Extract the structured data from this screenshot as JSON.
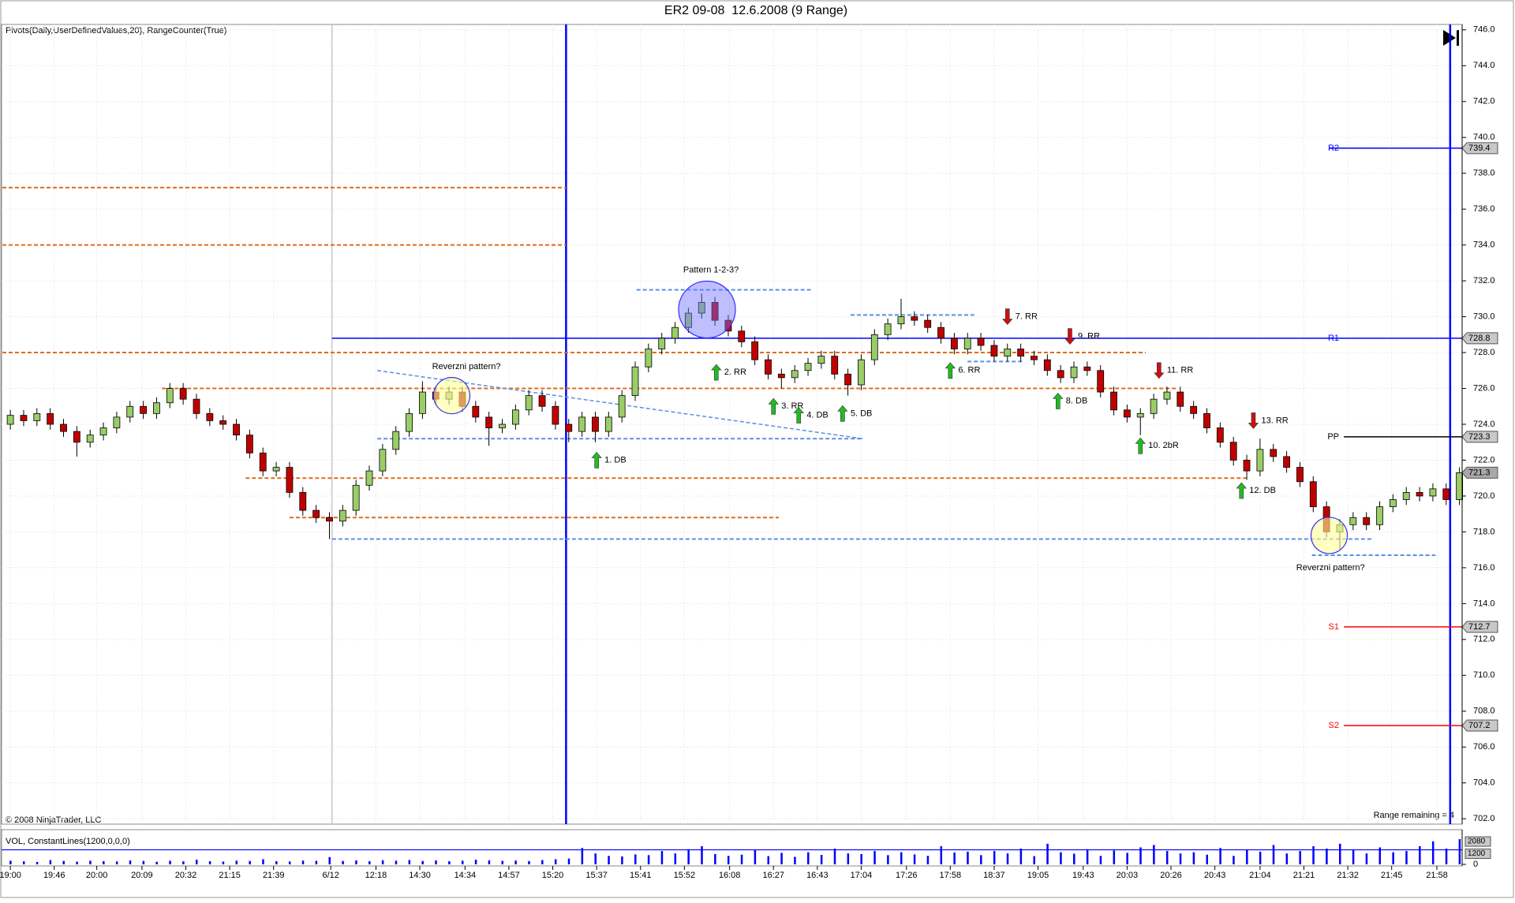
{
  "chart_data": {
    "type": "candlestick",
    "title": "ER2 09-08  12.6.2008 (9 Range)",
    "indicator_label": "Pivots(Daily,UserDefinedValues,20), RangeCounter(True)",
    "copyright": "© 2008 NinjaTrader, LLC",
    "range_label": "Range remaining = 4",
    "grid": true,
    "up_color": "#9acd67",
    "down_color": "#c00000",
    "xlim": [
      -0.6,
      109.2
    ],
    "xticks": [
      {
        "value": 0,
        "label": "19:00"
      },
      {
        "value": 3.3,
        "label": "19:46"
      },
      {
        "value": 6.5,
        "label": "20:00"
      },
      {
        "value": 9.9,
        "label": "20:09"
      },
      {
        "value": 13.2,
        "label": "20:32"
      },
      {
        "value": 16.5,
        "label": "21:15"
      },
      {
        "value": 19.8,
        "label": "21:39"
      },
      {
        "value": 24.1,
        "label": "6/12"
      },
      {
        "value": 27.5,
        "label": "12:18"
      },
      {
        "value": 30.8,
        "label": "14:30"
      },
      {
        "value": 34.2,
        "label": "14:34"
      },
      {
        "value": 37.5,
        "label": "14:57"
      },
      {
        "value": 40.8,
        "label": "15:20"
      },
      {
        "value": 44.1,
        "label": "15:37"
      },
      {
        "value": 47.4,
        "label": "15:41"
      },
      {
        "value": 50.7,
        "label": "15:52"
      },
      {
        "value": 54.1,
        "label": "16:08"
      },
      {
        "value": 57.4,
        "label": "16:27"
      },
      {
        "value": 60.7,
        "label": "16:43"
      },
      {
        "value": 64.0,
        "label": "17:04"
      },
      {
        "value": 67.4,
        "label": "17:26"
      },
      {
        "value": 70.7,
        "label": "17:58"
      },
      {
        "value": 74.0,
        "label": "18:37"
      },
      {
        "value": 77.3,
        "label": "19:05"
      },
      {
        "value": 80.7,
        "label": "19:43"
      },
      {
        "value": 84.0,
        "label": "20:03"
      },
      {
        "value": 87.3,
        "label": "20:26"
      },
      {
        "value": 90.6,
        "label": "20:43"
      },
      {
        "value": 94.0,
        "label": "21:04"
      },
      {
        "value": 97.3,
        "label": "21:21"
      },
      {
        "value": 100.6,
        "label": "21:32"
      },
      {
        "value": 103.9,
        "label": "21:45"
      },
      {
        "value": 107.3,
        "label": "21:58"
      }
    ],
    "ylim": [
      701.7,
      746.3
    ],
    "yticks": [
      {
        "value": 702,
        "label": "702.0"
      },
      {
        "value": 704,
        "label": "704.0"
      },
      {
        "value": 706,
        "label": "706.0"
      },
      {
        "value": 708,
        "label": "708.0"
      },
      {
        "value": 710,
        "label": "710.0"
      },
      {
        "value": 712,
        "label": "712.0"
      },
      {
        "value": 714,
        "label": "714.0"
      },
      {
        "value": 716,
        "label": "716.0"
      },
      {
        "value": 718,
        "label": "718.0"
      },
      {
        "value": 720,
        "label": "720.0"
      },
      {
        "value": 722,
        "label": "722.0"
      },
      {
        "value": 724,
        "label": "724.0"
      },
      {
        "value": 726,
        "label": "726.0"
      },
      {
        "value": 728,
        "label": "728.0"
      },
      {
        "value": 730,
        "label": "730.0"
      },
      {
        "value": 732,
        "label": "732.0"
      },
      {
        "value": 734,
        "label": "734.0"
      },
      {
        "value": 736,
        "label": "736.0"
      },
      {
        "value": 738,
        "label": "738.0"
      },
      {
        "value": 740,
        "label": "740.0"
      },
      {
        "value": 742,
        "label": "742.0"
      },
      {
        "value": 744,
        "label": "744.0"
      },
      {
        "value": 746,
        "label": "746.0"
      }
    ],
    "candles": [
      [
        724.0,
        724.8,
        723.7,
        724.5
      ],
      [
        724.5,
        724.8,
        723.9,
        724.2
      ],
      [
        724.2,
        724.9,
        723.9,
        724.6
      ],
      [
        724.6,
        724.9,
        723.7,
        724.0
      ],
      [
        724.0,
        724.3,
        723.3,
        723.6
      ],
      [
        723.6,
        723.9,
        722.2,
        723.0
      ],
      [
        723.0,
        723.7,
        722.7,
        723.4
      ],
      [
        723.4,
        724.1,
        723.1,
        723.8
      ],
      [
        723.8,
        724.7,
        723.5,
        724.4
      ],
      [
        724.4,
        725.3,
        724.1,
        725.0
      ],
      [
        725.0,
        725.3,
        724.3,
        724.6
      ],
      [
        724.6,
        725.5,
        724.3,
        725.2
      ],
      [
        725.2,
        726.3,
        724.9,
        726.0
      ],
      [
        726.0,
        726.3,
        725.1,
        725.4
      ],
      [
        725.4,
        725.7,
        724.3,
        724.6
      ],
      [
        724.6,
        724.9,
        723.9,
        724.2
      ],
      [
        724.2,
        724.5,
        723.7,
        724.0
      ],
      [
        724.0,
        724.3,
        723.1,
        723.4
      ],
      [
        723.4,
        723.7,
        722.1,
        722.4
      ],
      [
        722.4,
        722.7,
        721.1,
        721.4
      ],
      [
        721.4,
        721.9,
        721.1,
        721.6
      ],
      [
        721.6,
        721.9,
        719.9,
        720.2
      ],
      [
        720.2,
        720.5,
        718.9,
        719.2
      ],
      [
        719.2,
        719.5,
        718.5,
        718.8
      ],
      [
        718.8,
        719.1,
        717.6,
        718.6
      ],
      [
        718.6,
        719.5,
        718.3,
        719.2
      ],
      [
        719.2,
        720.9,
        718.9,
        720.6
      ],
      [
        720.6,
        721.7,
        720.3,
        721.4
      ],
      [
        721.4,
        722.9,
        721.1,
        722.6
      ],
      [
        722.6,
        723.9,
        722.3,
        723.6
      ],
      [
        723.6,
        724.9,
        723.3,
        724.6
      ],
      [
        724.6,
        726.4,
        724.3,
        725.8
      ],
      [
        725.8,
        726.1,
        725.1,
        725.4
      ],
      [
        725.4,
        726.1,
        725.1,
        725.8
      ],
      [
        725.8,
        726.1,
        724.7,
        725.0
      ],
      [
        725.0,
        725.3,
        724.1,
        724.4
      ],
      [
        724.4,
        724.7,
        722.8,
        723.8
      ],
      [
        723.8,
        724.3,
        723.5,
        724.0
      ],
      [
        724.0,
        725.1,
        723.7,
        724.8
      ],
      [
        724.8,
        725.9,
        724.5,
        725.6
      ],
      [
        725.6,
        725.9,
        724.7,
        725.0
      ],
      [
        725.0,
        725.3,
        723.7,
        724.0
      ],
      [
        724.0,
        724.3,
        723.0,
        723.6
      ],
      [
        723.6,
        724.7,
        723.3,
        724.4
      ],
      [
        724.4,
        724.7,
        723.0,
        723.6
      ],
      [
        723.6,
        724.7,
        723.3,
        724.4
      ],
      [
        724.4,
        725.9,
        724.1,
        725.6
      ],
      [
        725.6,
        727.5,
        725.3,
        727.2
      ],
      [
        727.2,
        728.5,
        726.9,
        728.2
      ],
      [
        728.2,
        729.1,
        727.9,
        728.8
      ],
      [
        728.8,
        729.7,
        728.5,
        729.4
      ],
      [
        729.4,
        730.5,
        729.1,
        730.2
      ],
      [
        730.2,
        731.3,
        729.9,
        730.8
      ],
      [
        730.8,
        731.1,
        729.5,
        729.8
      ],
      [
        729.8,
        730.1,
        728.9,
        729.2
      ],
      [
        729.2,
        729.5,
        728.3,
        728.6
      ],
      [
        728.6,
        728.9,
        727.3,
        727.6
      ],
      [
        727.6,
        727.9,
        726.5,
        726.8
      ],
      [
        726.8,
        727.1,
        726.0,
        726.6
      ],
      [
        726.6,
        727.3,
        726.3,
        727.0
      ],
      [
        727.0,
        727.7,
        726.7,
        727.4
      ],
      [
        727.4,
        728.1,
        727.1,
        727.8
      ],
      [
        727.8,
        728.1,
        726.5,
        726.8
      ],
      [
        726.8,
        727.1,
        725.6,
        726.2
      ],
      [
        726.2,
        727.9,
        725.9,
        727.6
      ],
      [
        727.6,
        729.3,
        727.3,
        729.0
      ],
      [
        729.0,
        729.9,
        728.7,
        729.6
      ],
      [
        729.6,
        731.0,
        729.3,
        730.0
      ],
      [
        730.0,
        730.3,
        729.5,
        729.8
      ],
      [
        729.8,
        730.1,
        729.1,
        729.4
      ],
      [
        729.4,
        729.7,
        728.5,
        728.8
      ],
      [
        728.8,
        729.1,
        727.9,
        728.2
      ],
      [
        728.2,
        729.1,
        727.9,
        728.8
      ],
      [
        728.8,
        729.1,
        728.1,
        728.4
      ],
      [
        728.4,
        728.7,
        727.5,
        727.8
      ],
      [
        727.8,
        728.5,
        727.5,
        728.2
      ],
      [
        728.2,
        728.5,
        727.5,
        727.8
      ],
      [
        727.8,
        728.1,
        727.3,
        727.6
      ],
      [
        727.6,
        727.9,
        726.7,
        727.0
      ],
      [
        727.0,
        727.3,
        726.3,
        726.6
      ],
      [
        726.6,
        727.5,
        726.3,
        727.2
      ],
      [
        727.2,
        727.5,
        726.7,
        727.0
      ],
      [
        727.0,
        727.3,
        725.5,
        725.8
      ],
      [
        725.8,
        726.1,
        724.5,
        724.8
      ],
      [
        724.8,
        725.1,
        724.1,
        724.4
      ],
      [
        724.4,
        724.9,
        723.4,
        724.6
      ],
      [
        724.6,
        725.7,
        724.3,
        725.4
      ],
      [
        725.4,
        726.1,
        725.1,
        725.8
      ],
      [
        725.8,
        726.1,
        724.7,
        725.0
      ],
      [
        725.0,
        725.3,
        724.3,
        724.6
      ],
      [
        724.6,
        724.9,
        723.5,
        723.8
      ],
      [
        723.8,
        724.1,
        722.7,
        723.0
      ],
      [
        723.0,
        723.3,
        721.7,
        722.0
      ],
      [
        722.0,
        722.3,
        720.9,
        721.4
      ],
      [
        721.4,
        723.2,
        721.1,
        722.6
      ],
      [
        722.6,
        722.9,
        721.9,
        722.2
      ],
      [
        722.2,
        722.5,
        721.3,
        721.6
      ],
      [
        721.6,
        721.9,
        720.5,
        720.8
      ],
      [
        720.8,
        721.1,
        719.1,
        719.4
      ],
      [
        719.4,
        719.7,
        717.7,
        718.0
      ],
      [
        718.0,
        718.7,
        717.0,
        718.4
      ],
      [
        718.4,
        719.1,
        718.1,
        718.8
      ],
      [
        718.8,
        719.1,
        718.1,
        718.4
      ],
      [
        718.4,
        719.7,
        718.1,
        719.4
      ],
      [
        719.4,
        720.1,
        719.1,
        719.8
      ],
      [
        719.8,
        720.5,
        719.5,
        720.2
      ],
      [
        720.2,
        720.5,
        719.7,
        720.0
      ],
      [
        720.0,
        720.7,
        719.7,
        720.4
      ],
      [
        720.4,
        720.7,
        719.5,
        719.8
      ],
      [
        719.8,
        721.6,
        719.5,
        721.3
      ]
    ],
    "pivots": [
      {
        "name": "R2",
        "value": 739.4,
        "from": 99.2,
        "color": "#0000ff"
      },
      {
        "name": "R1",
        "value": 728.8,
        "from": 24.2,
        "color": "#0000ff"
      },
      {
        "name": "PP",
        "value": 723.3,
        "from": 100.3,
        "color": "#000000"
      },
      {
        "name": "S1",
        "value": 712.7,
        "from": 100.3,
        "color": "#ff0000"
      },
      {
        "name": "S2",
        "value": 707.2,
        "from": 100.3,
        "color": "#ff0000"
      }
    ],
    "levels": [
      {
        "y": 737.2,
        "from": -0.6,
        "to": 41.8,
        "color": "#e06c1a"
      },
      {
        "y": 734.0,
        "from": -0.6,
        "to": 41.8,
        "color": "#e06c1a"
      },
      {
        "y": 728.0,
        "from": -0.6,
        "to": 85.4,
        "color": "#e06c1a"
      },
      {
        "y": 726.0,
        "from": 11.4,
        "to": 87.8,
        "color": "#e06c1a"
      },
      {
        "y": 721.0,
        "from": 17.7,
        "to": 93.0,
        "color": "#e06c1a"
      },
      {
        "y": 718.8,
        "from": 21.0,
        "to": 57.8,
        "color": "#e06c1a"
      },
      {
        "y": 717.6,
        "from": 24.2,
        "to": 102.5,
        "color": "#5b8fe6"
      },
      {
        "y": 723.2,
        "from": 27.6,
        "to": 64.1,
        "color": "#5b8fe6"
      },
      {
        "y": 731.5,
        "from": 47.1,
        "to": 60.2,
        "color": "#5b8fe6"
      },
      {
        "y": 730.1,
        "from": 63.2,
        "to": 72.5,
        "color": "#5b8fe6"
      },
      {
        "y": 727.5,
        "from": 72.0,
        "to": 76.2,
        "color": "#5b8fe6"
      },
      {
        "y": 716.7,
        "from": 97.9,
        "to": 107.2,
        "color": "#5b8fe6"
      }
    ],
    "trendlines": [
      {
        "from": [
          27.6,
          727.0
        ],
        "to": [
          64.1,
          723.2
        ],
        "color": "#5b8fe6"
      }
    ],
    "vlines": [
      {
        "x": 24.2,
        "color": "#b0b0b0"
      },
      {
        "x": 41.8,
        "color": "#0000ff"
      },
      {
        "x": 108.3,
        "color": "#0000ff"
      }
    ],
    "arrows": [
      {
        "label": "1. DB",
        "x": 44.1,
        "y": 722.0,
        "dir": "up"
      },
      {
        "label": "2. RR",
        "x": 53.1,
        "y": 726.9,
        "dir": "up"
      },
      {
        "label": "3. RR",
        "x": 57.4,
        "y": 725.0,
        "dir": "up"
      },
      {
        "label": "4. DB",
        "x": 59.3,
        "y": 724.5,
        "dir": "up"
      },
      {
        "label": "5. DB",
        "x": 62.6,
        "y": 724.6,
        "dir": "up"
      },
      {
        "label": "6. RR",
        "x": 70.7,
        "y": 727.0,
        "dir": "up"
      },
      {
        "label": "7. RR",
        "x": 75.0,
        "y": 730.0,
        "dir": "down"
      },
      {
        "label": "8. DB",
        "x": 78.8,
        "y": 725.3,
        "dir": "up"
      },
      {
        "label": "9. RR",
        "x": 79.7,
        "y": 728.9,
        "dir": "down"
      },
      {
        "label": "10. 2bR",
        "x": 85.0,
        "y": 722.8,
        "dir": "up"
      },
      {
        "label": "11. RR",
        "x": 86.4,
        "y": 727.0,
        "dir": "down"
      },
      {
        "label": "12. DB",
        "x": 92.6,
        "y": 720.3,
        "dir": "up"
      },
      {
        "label": "13. RR",
        "x": 93.5,
        "y": 724.2,
        "dir": "down"
      }
    ],
    "circles": [
      {
        "x": 33.2,
        "y": 725.6,
        "fill": "#ffff99"
      },
      {
        "x": 52.4,
        "y": 730.4,
        "fill": "#7070ff"
      },
      {
        "x": 99.2,
        "y": 717.8,
        "fill": "#ffff99"
      }
    ],
    "notes": [
      {
        "text": "Reverzni pattern?",
        "x": 34.3,
        "y": 727.2
      },
      {
        "text": "Pattern 1-2-3?",
        "x": 52.7,
        "y": 732.6
      },
      {
        "text": "Reverzni pattern?",
        "x": 99.3,
        "y": 716.0
      }
    ],
    "volume": {
      "label": "VOL, ConstantLines(1200,0,0,0)",
      "color": "#0000ff",
      "ylim": [
        0,
        2800
      ],
      "yticks": [
        0
      ],
      "constant_line": 1200,
      "values": [
        300,
        250,
        200,
        350,
        280,
        220,
        300,
        260,
        240,
        320,
        280,
        210,
        300,
        250,
        380,
        260,
        230,
        300,
        280,
        420,
        260,
        240,
        310,
        290,
        600,
        280,
        320,
        260,
        340,
        300,
        360,
        280,
        320,
        260,
        300,
        380,
        330,
        290,
        310,
        270,
        350,
        420,
        480,
        1350,
        900,
        700,
        650,
        820,
        760,
        1100,
        900,
        1250,
        1500,
        850,
        700,
        800,
        1200,
        680,
        950,
        620,
        1000,
        780,
        1300,
        900,
        850,
        1100,
        760,
        1000,
        820,
        700,
        1500,
        980,
        1050,
        760,
        1100,
        900,
        1300,
        680,
        1700,
        1000,
        880,
        1250,
        700,
        1150,
        950,
        1400,
        1600,
        1100,
        900,
        1000,
        800,
        1350,
        700,
        1200,
        1050,
        1600,
        900,
        1100,
        1500,
        1300,
        1700,
        1200,
        900,
        1400,
        1000,
        1100,
        1500,
        1900,
        1300,
        2080
      ]
    }
  }
}
